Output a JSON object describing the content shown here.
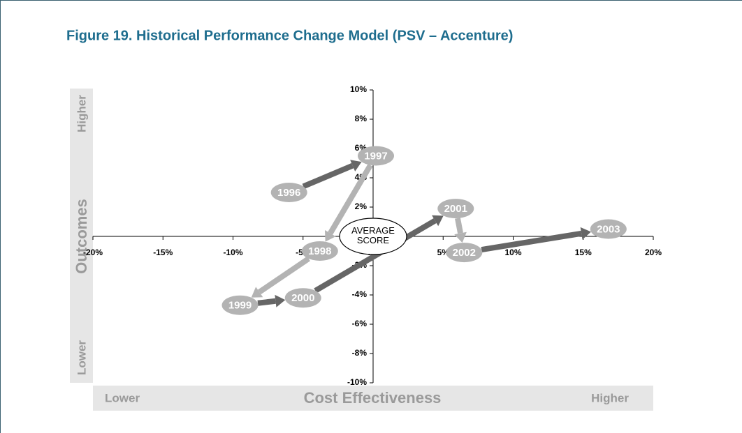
{
  "chart_data": {
    "type": "scatter",
    "title": "Figure 19. Historical Performance Change Model (PSV – Accenture)",
    "x_label": "Cost Effectiveness",
    "y_label": "Outcomes",
    "x_low": "Lower",
    "x_high": "Higher",
    "y_low": "Lower",
    "y_high": "Higher",
    "center_label": "AVERAGE SCORE",
    "point_labels": [
      "1996",
      "1997",
      "1998",
      "1999",
      "2000",
      "2001",
      "2002",
      "2003"
    ],
    "x": [
      -6.0,
      0.2,
      -3.8,
      -9.5,
      -5.0,
      5.9,
      6.5,
      16.8
    ],
    "values": [
      3.0,
      5.5,
      -1.0,
      -4.7,
      -4.2,
      1.9,
      -1.1,
      0.5
    ],
    "point_color": "#b3b3b3",
    "arrow_colors": [
      "#666666",
      "#b3b3b3",
      "#b3b3b3",
      "#666666",
      "#666666",
      "#b3b3b3",
      "#666666"
    ],
    "xlim": [
      -20,
      20
    ],
    "ylim": [
      -10,
      10
    ],
    "xticks": [
      {
        "value": -20,
        "label": "-20%"
      },
      {
        "value": -15,
        "label": "-15%"
      },
      {
        "value": -10,
        "label": "-10%"
      },
      {
        "value": -5,
        "label": "-5%"
      },
      {
        "value": 0,
        "label": "0%"
      },
      {
        "value": 5,
        "label": "5%"
      },
      {
        "value": 10,
        "label": "10%"
      },
      {
        "value": 15,
        "label": "15%"
      },
      {
        "value": 20,
        "label": "20%"
      }
    ],
    "yticks": [
      {
        "value": -10,
        "label": "-10%"
      },
      {
        "value": -8,
        "label": "-8%"
      },
      {
        "value": -6,
        "label": "-6%"
      },
      {
        "value": -4,
        "label": "-4%"
      },
      {
        "value": -2,
        "label": "-2%"
      },
      {
        "value": 0,
        "label": "0%"
      },
      {
        "value": 2,
        "label": "2%"
      },
      {
        "value": 4,
        "label": "4%"
      },
      {
        "value": 6,
        "label": "6%"
      },
      {
        "value": 8,
        "label": "8%"
      },
      {
        "value": 10,
        "label": "10%"
      }
    ]
  }
}
